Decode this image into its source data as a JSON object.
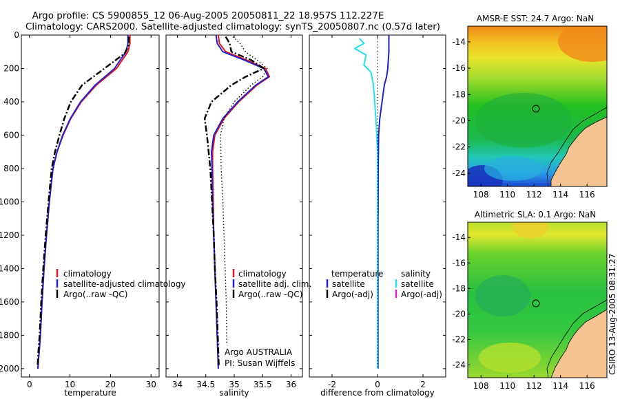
{
  "figure": {
    "title_line1": "Argo profile: CS 5900855_12 06-Aug-2005 20050811_22 18.957S 112.227E",
    "title_line2": "Climatology: CARS2000. Satellite-adjusted climatology: synTS_20050807.nc (0.57d later)",
    "side_stamp": "CSIRO 13-Aug-2005 08:31:27",
    "credit_line1": "Argo AUSTRALIA",
    "credit_line2": "PI: Susan Wijffels"
  },
  "colors": {
    "climatology": "#e8141c",
    "satellite": "#1f1fcf",
    "argo": "#000000",
    "satellite_salinity_diff": "#22e0ee",
    "argo_salinity_diff": "#d020d0",
    "land": "#f6c490"
  },
  "chart_data": [
    {
      "type": "line",
      "xlabel": "temperature",
      "xlim": [
        -2,
        32
      ],
      "ylim": [
        2050,
        0
      ],
      "x_ticks": [
        0,
        10,
        20,
        30
      ],
      "y_ticks": [
        0,
        200,
        400,
        600,
        800,
        1000,
        1200,
        1400,
        1600,
        1800,
        2000
      ],
      "legend": [
        "climatology",
        "satellite-adjusted climatology",
        "Argo(..raw -QC)"
      ],
      "series": [
        {
          "name": "climatology",
          "style": "solid",
          "x": [
            24.8,
            24.8,
            24.3,
            21.5,
            16.5,
            12.8,
            10.2,
            8.3,
            6.8,
            5.8,
            4.9,
            4.2,
            3.6,
            3.1,
            2.7,
            2.4,
            2.2,
            2.1
          ],
          "y": [
            0,
            50,
            100,
            200,
            300,
            400,
            500,
            600,
            700,
            800,
            1000,
            1200,
            1400,
            1600,
            1800,
            1900,
            1950,
            2000
          ]
        },
        {
          "name": "satellite-adjusted climatology",
          "style": "solid",
          "x": [
            24.3,
            24.3,
            23.8,
            21.0,
            16.2,
            12.6,
            10.1,
            8.2,
            6.8,
            5.8,
            4.9,
            4.2,
            3.6,
            3.1,
            2.7,
            2.4,
            2.2,
            2.1
          ],
          "y": [
            0,
            50,
            100,
            200,
            300,
            400,
            500,
            600,
            700,
            800,
            1000,
            1200,
            1400,
            1600,
            1800,
            1900,
            1950,
            2000
          ]
        },
        {
          "name": "Argo(..raw -QC)",
          "style": "dashdot",
          "x": [
            24.5,
            24.5,
            23.5,
            18.5,
            13.0,
            10.2,
            8.6,
            7.4,
            6.3,
            5.5,
            4.7,
            4.0,
            3.4,
            2.9,
            2.5,
            2.2,
            2.0
          ],
          "y": [
            10,
            60,
            110,
            200,
            300,
            400,
            500,
            600,
            700,
            800,
            1000,
            1200,
            1400,
            1600,
            1800,
            1900,
            1990
          ]
        }
      ]
    },
    {
      "type": "line",
      "xlabel": "salinity",
      "xlim": [
        33.8,
        36.2
      ],
      "ylim": [
        2050,
        0
      ],
      "x_ticks": [
        34,
        34.5,
        35,
        35.5,
        36
      ],
      "legend": [
        "climatology",
        "satellite adj. clim.",
        "Argo(..raw -QC)"
      ],
      "series": [
        {
          "name": "climatology",
          "style": "solid",
          "x": [
            34.72,
            34.74,
            34.85,
            35.22,
            35.55,
            35.62,
            35.4,
            35.08,
            34.82,
            34.66,
            34.62,
            34.62,
            34.63,
            34.64,
            34.66,
            34.68,
            34.7,
            34.71,
            34.72
          ],
          "y": [
            0,
            50,
            100,
            150,
            200,
            250,
            300,
            400,
            500,
            600,
            700,
            800,
            1000,
            1200,
            1400,
            1600,
            1800,
            1900,
            2000
          ]
        },
        {
          "name": "satellite adj. clim.",
          "style": "solid",
          "x": [
            34.68,
            34.7,
            34.8,
            35.18,
            35.52,
            35.6,
            35.38,
            35.06,
            34.8,
            34.64,
            34.6,
            34.61,
            34.62,
            34.64,
            34.66,
            34.68,
            34.7,
            34.71,
            34.72
          ],
          "y": [
            0,
            50,
            100,
            150,
            200,
            250,
            300,
            400,
            500,
            600,
            700,
            800,
            1000,
            1200,
            1400,
            1600,
            1800,
            1900,
            2000
          ]
        },
        {
          "name": "Argo(..raw -QC)",
          "style": "dashdot",
          "x": [
            34.85,
            34.92,
            34.95,
            35.3,
            35.52,
            35.2,
            34.95,
            34.6,
            34.48,
            34.52,
            34.58,
            34.61,
            34.64,
            34.66,
            34.69,
            34.71,
            34.73
          ],
          "y": [
            10,
            50,
            100,
            150,
            200,
            250,
            300,
            400,
            500,
            600,
            800,
            1000,
            1200,
            1400,
            1600,
            1800,
            1990
          ]
        },
        {
          "name": "Argo salinity (adj.)",
          "style": "dotted",
          "x": [
            34.98,
            35.1,
            35.2,
            35.4,
            35.58,
            35.5,
            35.3,
            35.0,
            34.82,
            34.76,
            34.77,
            34.8,
            34.82,
            34.84,
            34.86,
            34.87
          ],
          "y": [
            10,
            50,
            100,
            150,
            200,
            250,
            300,
            400,
            500,
            600,
            800,
            1000,
            1200,
            1400,
            1600,
            1850
          ]
        }
      ]
    },
    {
      "type": "line",
      "xlabel": "difference from climatology",
      "xlim": [
        -3,
        3
      ],
      "ylim": [
        2050,
        0
      ],
      "x_ticks": [
        -2,
        0,
        2
      ],
      "legend_left_title": "temperature",
      "legend_right_title": "salinity",
      "legend_left": [
        "satellite",
        "Argo(-adj)"
      ],
      "legend_right": [
        "satellite",
        "Argo(-adj)"
      ],
      "series": [
        {
          "name": "temperature satellite",
          "style": "solid",
          "x": [
            0.5,
            0.5,
            0.45,
            0.4,
            0.3,
            0.2,
            0.1,
            0.05,
            0.03,
            0.02,
            0.02,
            0.02
          ],
          "y": [
            0,
            100,
            200,
            250,
            300,
            400,
            500,
            600,
            800,
            1200,
            1600,
            2000
          ]
        },
        {
          "name": "salinity satellite",
          "style": "solid",
          "x": [
            -0.8,
            -0.6,
            -1.0,
            -0.5,
            -0.6,
            -0.3,
            -0.2,
            -0.15,
            -0.1,
            -0.05,
            0,
            0,
            0,
            0
          ],
          "y": [
            20,
            50,
            80,
            120,
            180,
            220,
            280,
            350,
            450,
            550,
            700,
            1000,
            1500,
            2000
          ]
        },
        {
          "name": "zero line",
          "style": "dotted",
          "x": [
            0,
            0
          ],
          "y": [
            0,
            2000
          ]
        }
      ]
    }
  ],
  "maps": [
    {
      "title": "AMSR-E SST: 24.7 Argo: NaN",
      "x_ticks": [
        108,
        110,
        112,
        114,
        116
      ],
      "y_ticks": [
        -14,
        -16,
        -18,
        -20,
        -22,
        -24
      ],
      "xlim": [
        107,
        117.5
      ],
      "ylim": [
        -25,
        -12.8
      ],
      "float_marker": {
        "lon": 112.227,
        "lat": -18.957
      }
    },
    {
      "title": "Altimetric SLA: 0.1 Argo: NaN",
      "x_ticks": [
        108,
        110,
        112,
        114,
        116
      ],
      "y_ticks": [
        -14,
        -16,
        -18,
        -20,
        -22,
        -24
      ],
      "xlim": [
        107,
        117.5
      ],
      "ylim": [
        -25,
        -12.8
      ],
      "float_marker": {
        "lon": 112.227,
        "lat": -18.957
      }
    }
  ]
}
